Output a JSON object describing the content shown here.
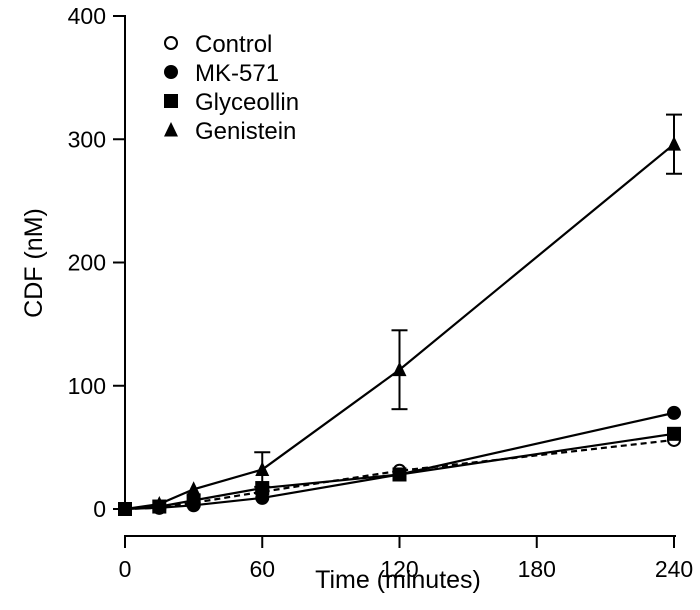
{
  "chart_data": {
    "type": "line",
    "title": "",
    "xlabel": "Time (minutes)",
    "ylabel": "CDF (nM)",
    "xlim": [
      0,
      240
    ],
    "ylim": [
      0,
      400
    ],
    "xticks": [
      0,
      60,
      120,
      180,
      240
    ],
    "yticks": [
      0,
      100,
      200,
      300,
      400
    ],
    "x": [
      0,
      15,
      30,
      60,
      120,
      240
    ],
    "grid": false,
    "legend_position": "top-left",
    "series": [
      {
        "name": "Control",
        "marker": "open-circle",
        "line": "dashed",
        "values": [
          0,
          1,
          5,
          14,
          31,
          56
        ]
      },
      {
        "name": "MK-571",
        "marker": "filled-circle",
        "line": "solid",
        "values": [
          0,
          1,
          3,
          9,
          28,
          78
        ]
      },
      {
        "name": "Glyceollin",
        "marker": "filled-square",
        "line": "solid",
        "values": [
          0,
          2,
          7,
          17,
          28,
          61
        ]
      },
      {
        "name": "Genistein",
        "marker": "filled-triangle",
        "line": "solid",
        "values": [
          0,
          4,
          16,
          32,
          113,
          296
        ],
        "error": [
          0,
          0,
          0,
          14,
          32,
          24
        ]
      }
    ]
  }
}
